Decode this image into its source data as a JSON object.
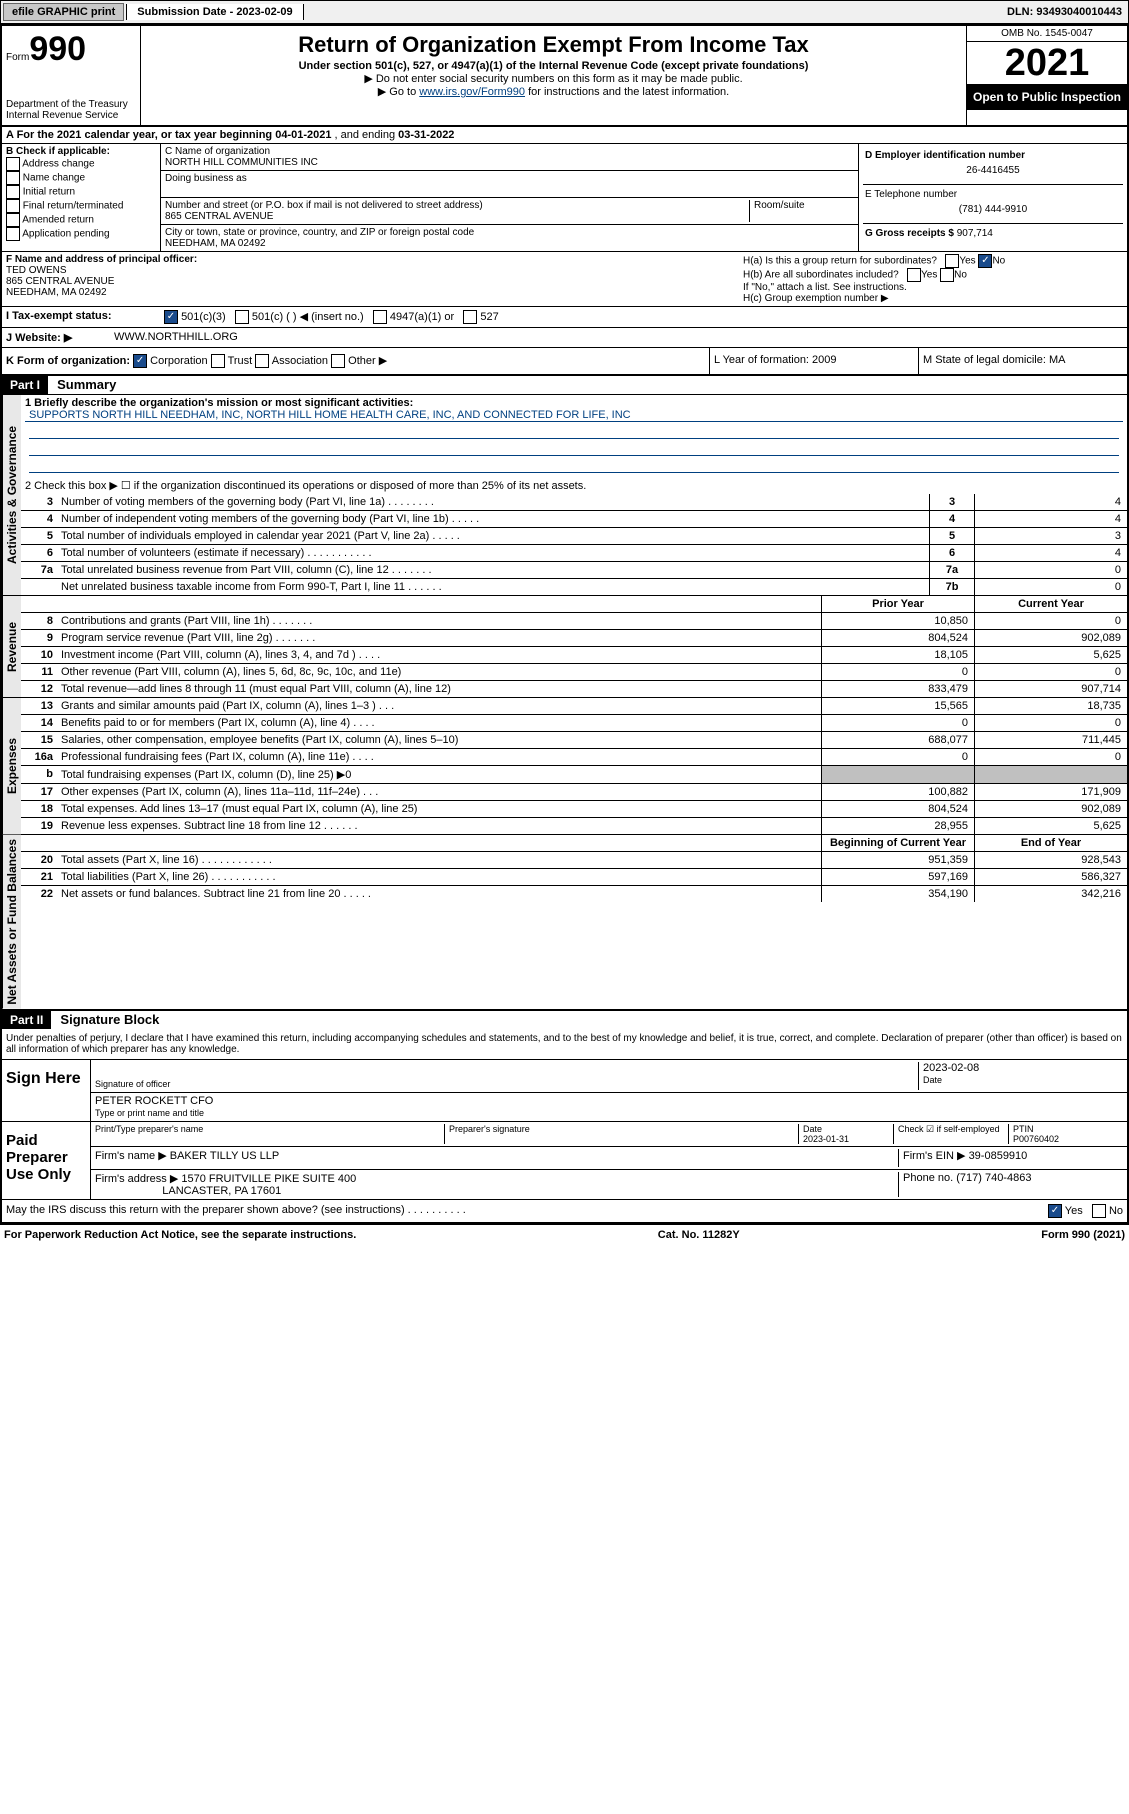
{
  "topbar": {
    "efile": "efile GRAPHIC print",
    "submission_label": "Submission Date - 2023-02-09",
    "dln": "DLN: 93493040010443"
  },
  "header": {
    "form_small": "Form",
    "form_big": "990",
    "title": "Return of Organization Exempt From Income Tax",
    "sub1": "Under section 501(c), 527, or 4947(a)(1) of the Internal Revenue Code (except private foundations)",
    "sub2a": "▶ Do not enter social security numbers on this form as it may be made public.",
    "sub2b_pre": "▶ Go to ",
    "sub2b_link": "www.irs.gov/Form990",
    "sub2b_post": " for instructions and the latest information.",
    "dept": "Department of the Treasury",
    "irs": "Internal Revenue Service",
    "omb": "OMB No. 1545-0047",
    "year": "2021",
    "inspect": "Open to Public Inspection"
  },
  "rowA": {
    "text_pre": "A For the 2021 calendar year, or tax year beginning ",
    "begin": "04-01-2021",
    "mid": " , and ending ",
    "end": "03-31-2022"
  },
  "colB": {
    "title": "B Check if applicable:",
    "items": [
      "Address change",
      "Name change",
      "Initial return",
      "Final return/terminated",
      "Amended return",
      "Application pending"
    ]
  },
  "colC": {
    "name_label": "C Name of organization",
    "name": "NORTH HILL COMMUNITIES INC",
    "dba_label": "Doing business as",
    "addr_label": "Number and street (or P.O. box if mail is not delivered to street address)",
    "room_label": "Room/suite",
    "addr": "865 CENTRAL AVENUE",
    "city_label": "City or town, state or province, country, and ZIP or foreign postal code",
    "city": "NEEDHAM, MA  02492"
  },
  "colD": {
    "ein_label": "D Employer identification number",
    "ein": "26-4416455",
    "phone_label": "E Telephone number",
    "phone": "(781) 444-9910",
    "gross_label": "G Gross receipts $",
    "gross": "907,714"
  },
  "rowF": {
    "label": "F  Name and address of principal officer:",
    "name": "TED OWENS",
    "addr1": "865 CENTRAL AVENUE",
    "addr2": "NEEDHAM, MA  02492"
  },
  "rowH": {
    "ha": "H(a)  Is this a group return for subordinates?",
    "ha_yes": "Yes",
    "ha_no": "No",
    "hb": "H(b)  Are all subordinates included?",
    "hb_note": "If \"No,\" attach a list. See instructions.",
    "hc": "H(c)  Group exemption number ▶"
  },
  "rowI": {
    "label": "I    Tax-exempt status:",
    "o1": "501(c)(3)",
    "o2": "501(c) (   ) ◀ (insert no.)",
    "o3": "4947(a)(1) or",
    "o4": "527"
  },
  "rowJ": {
    "label": "J   Website: ▶",
    "val": "WWW.NORTHHILL.ORG"
  },
  "rowK": {
    "label": "K Form of organization:",
    "o1": "Corporation",
    "o2": "Trust",
    "o3": "Association",
    "o4": "Other ▶",
    "L": "L Year of formation: 2009",
    "M": "M State of legal domicile: MA"
  },
  "part1": {
    "hdr": "Part I",
    "title": "Summary",
    "side_gov": "Activities & Governance",
    "side_rev": "Revenue",
    "side_exp": "Expenses",
    "side_net": "Net Assets or Fund Balances",
    "l1_label": "1  Briefly describe the organization's mission or most significant activities:",
    "l1_val": "SUPPORTS NORTH HILL NEEDHAM, INC, NORTH HILL HOME HEALTH CARE, INC, AND CONNECTED FOR LIFE, INC",
    "l2": "2   Check this box ▶ ☐  if the organization discontinued its operations or disposed of more than 25% of its net assets.",
    "lines_gov": [
      {
        "n": "3",
        "d": "Number of voting members of the governing body (Part VI, line 1a)  .   .   .   .   .   .   .   .",
        "b": "3",
        "v": "4"
      },
      {
        "n": "4",
        "d": "Number of independent voting members of the governing body (Part VI, line 1b)   .   .   .   .   .",
        "b": "4",
        "v": "4"
      },
      {
        "n": "5",
        "d": "Total number of individuals employed in calendar year 2021 (Part V, line 2a)   .   .   .   .   .",
        "b": "5",
        "v": "3"
      },
      {
        "n": "6",
        "d": "Total number of volunteers (estimate if necessary)   .   .   .   .   .   .   .   .   .   .   .",
        "b": "6",
        "v": "4"
      },
      {
        "n": "7a",
        "d": "Total unrelated business revenue from Part VIII, column (C), line 12   .   .   .   .   .   .   .",
        "b": "7a",
        "v": "0"
      },
      {
        "n": "",
        "d": "Net unrelated business taxable income from Form 990-T, Part I, line 11   .   .   .   .   .   .",
        "b": "7b",
        "v": "0"
      }
    ],
    "col_py": "Prior Year",
    "col_cy": "Current Year",
    "lines_rev": [
      {
        "n": "8",
        "d": "Contributions and grants (Part VIII, line 1h)   .   .   .   .   .   .   .",
        "py": "10,850",
        "cy": "0"
      },
      {
        "n": "9",
        "d": "Program service revenue (Part VIII, line 2g)   .   .   .   .   .   .   .",
        "py": "804,524",
        "cy": "902,089"
      },
      {
        "n": "10",
        "d": "Investment income (Part VIII, column (A), lines 3, 4, and 7d )   .   .   .   .",
        "py": "18,105",
        "cy": "5,625"
      },
      {
        "n": "11",
        "d": "Other revenue (Part VIII, column (A), lines 5, 6d, 8c, 9c, 10c, and 11e)",
        "py": "0",
        "cy": "0"
      },
      {
        "n": "12",
        "d": "Total revenue—add lines 8 through 11 (must equal Part VIII, column (A), line 12)",
        "py": "833,479",
        "cy": "907,714"
      }
    ],
    "lines_exp": [
      {
        "n": "13",
        "d": "Grants and similar amounts paid (Part IX, column (A), lines 1–3 )   .   .   .",
        "py": "15,565",
        "cy": "18,735"
      },
      {
        "n": "14",
        "d": "Benefits paid to or for members (Part IX, column (A), line 4)   .   .   .   .",
        "py": "0",
        "cy": "0"
      },
      {
        "n": "15",
        "d": "Salaries, other compensation, employee benefits (Part IX, column (A), lines 5–10)",
        "py": "688,077",
        "cy": "711,445"
      },
      {
        "n": "16a",
        "d": "Professional fundraising fees (Part IX, column (A), line 11e)   .   .   .   .",
        "py": "0",
        "cy": "0"
      },
      {
        "n": "b",
        "d": "Total fundraising expenses (Part IX, column (D), line 25) ▶0",
        "py": "",
        "cy": "",
        "grey": true
      },
      {
        "n": "17",
        "d": "Other expenses (Part IX, column (A), lines 11a–11d, 11f–24e)   .   .   .",
        "py": "100,882",
        "cy": "171,909"
      },
      {
        "n": "18",
        "d": "Total expenses. Add lines 13–17 (must equal Part IX, column (A), line 25)",
        "py": "804,524",
        "cy": "902,089"
      },
      {
        "n": "19",
        "d": "Revenue less expenses. Subtract line 18 from line 12   .   .   .   .   .   .",
        "py": "28,955",
        "cy": "5,625"
      }
    ],
    "col_boy": "Beginning of Current Year",
    "col_eoy": "End of Year",
    "lines_net": [
      {
        "n": "20",
        "d": "Total assets (Part X, line 16)   .   .   .   .   .   .   .   .   .   .   .   .",
        "py": "951,359",
        "cy": "928,543"
      },
      {
        "n": "21",
        "d": "Total liabilities (Part X, line 26)   .   .   .   .   .   .   .   .   .   .   .",
        "py": "597,169",
        "cy": "586,327"
      },
      {
        "n": "22",
        "d": "Net assets or fund balances. Subtract line 21 from line 20   .   .   .   .   .",
        "py": "354,190",
        "cy": "342,216"
      }
    ]
  },
  "part2": {
    "hdr": "Part II",
    "title": "Signature Block",
    "declaration": "Under penalties of perjury, I declare that I have examined this return, including accompanying schedules and statements, and to the best of my knowledge and belief, it is true, correct, and complete. Declaration of preparer (other than officer) is based on all information of which preparer has any knowledge.",
    "sign_here": "Sign Here",
    "sig_officer": "Signature of officer",
    "sig_date": "Date",
    "sig_date_val": "2023-02-08",
    "sig_name": "PETER ROCKETT CFO",
    "sig_name_label": "Type or print name and title",
    "paid": "Paid Preparer Use Only",
    "p_name_label": "Print/Type preparer's name",
    "p_sig_label": "Preparer's signature",
    "p_date_label": "Date",
    "p_date": "2023-01-31",
    "p_self": "Check ☑ if self-employed",
    "p_ptin_label": "PTIN",
    "p_ptin": "P00760402",
    "firm_name_label": "Firm's name    ▶",
    "firm_name": "BAKER TILLY US LLP",
    "firm_ein_label": "Firm's EIN ▶",
    "firm_ein": "39-0859910",
    "firm_addr_label": "Firm's address ▶",
    "firm_addr1": "1570 FRUITVILLE PIKE SUITE 400",
    "firm_addr2": "LANCASTER, PA  17601",
    "firm_phone_label": "Phone no.",
    "firm_phone": "(717) 740-4863",
    "discuss": "May the IRS discuss this return with the preparer shown above? (see instructions)   .   .   .   .   .   .   .   .   .   .",
    "discuss_yes": "Yes",
    "discuss_no": "No"
  },
  "footer": {
    "l": "For Paperwork Reduction Act Notice, see the separate instructions.",
    "c": "Cat. No. 11282Y",
    "r": "Form 990 (2021)"
  }
}
